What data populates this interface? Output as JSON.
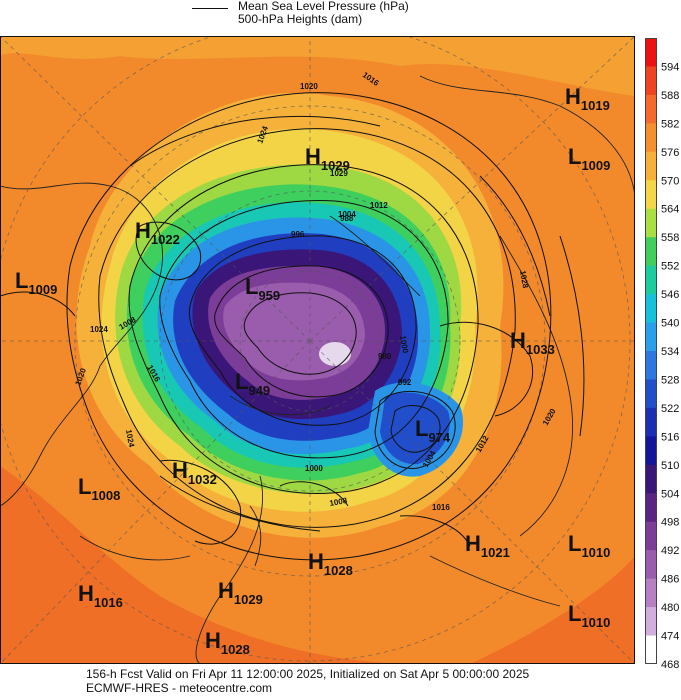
{
  "legend": {
    "line1": "Mean Sea Level Pressure (hPa)",
    "line2": "500-hPa Heights (dam)"
  },
  "colorbar": {
    "labels": [
      "594",
      "588",
      "582",
      "576",
      "570",
      "564",
      "558",
      "552",
      "546",
      "540",
      "534",
      "528",
      "522",
      "516",
      "510",
      "504",
      "498",
      "492",
      "486",
      "480",
      "474",
      "468"
    ],
    "colors": [
      "#ee1111",
      "#ee4422",
      "#f26b2a",
      "#f5902f",
      "#f7b03a",
      "#f4d64a",
      "#a9de45",
      "#3fcf5a",
      "#1ccc9e",
      "#16c2d9",
      "#2aa0ea",
      "#2d77e0",
      "#214ecb",
      "#1a2fb4",
      "#12169a",
      "#3a1678",
      "#5a2482",
      "#7b3d97",
      "#9a5cac",
      "#b680c2",
      "#d2aede",
      "#ffffff"
    ]
  },
  "systems": [
    {
      "type": "H",
      "value": "1019"
    },
    {
      "type": "L",
      "value": "1009"
    },
    {
      "type": "H",
      "value": "1029"
    },
    {
      "type": "H",
      "value": "1022"
    },
    {
      "type": "L",
      "value": "1009"
    },
    {
      "type": "L",
      "value": "959"
    },
    {
      "type": "H",
      "value": "1033"
    },
    {
      "type": "L",
      "value": "949"
    },
    {
      "type": "L",
      "value": "974"
    },
    {
      "type": "L",
      "value": "1008"
    },
    {
      "type": "H",
      "value": "1032"
    },
    {
      "type": "H",
      "value": "1021"
    },
    {
      "type": "L",
      "value": "1010"
    },
    {
      "type": "H",
      "value": "1028"
    },
    {
      "type": "H",
      "value": "1016"
    },
    {
      "type": "H",
      "value": "1029"
    },
    {
      "type": "L",
      "value": "1010"
    },
    {
      "type": "H",
      "value": "1028"
    }
  ],
  "isobar_labels": [
    "1016",
    "1020",
    "1024",
    "1029",
    "1012",
    "1004",
    "996",
    "988",
    "1000",
    "1008",
    "992",
    "980",
    "1024",
    "1028",
    "1020",
    "1016",
    "1012",
    "1004",
    "1000",
    "1008",
    "1016",
    "1020",
    "1024"
  ],
  "footer": {
    "line1": "156-h Fcst Valid on Fri Apr 11 12:00:00 2025, Initialized on Sat Apr  5 00:00:00 2025",
    "line2": "ECMWF-HRES  - meteocentre.com"
  }
}
